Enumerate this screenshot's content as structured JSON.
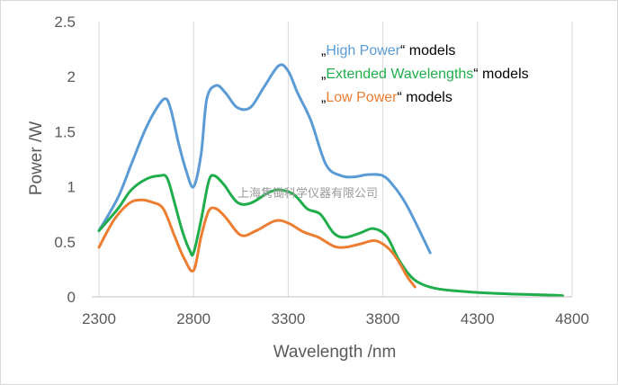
{
  "chart_data": {
    "type": "line",
    "title": "",
    "xlabel": "Wavelength /nm",
    "ylabel": "Power /W",
    "xlim": [
      2300,
      4800
    ],
    "ylim": [
      0,
      2.5
    ],
    "x_ticks": [
      "2300",
      "2800",
      "3300",
      "3800",
      "4300",
      "4800"
    ],
    "y_ticks": [
      "0",
      "0.5",
      "1",
      "1.5",
      "2",
      "2.5"
    ],
    "grid": "vertical",
    "legend_position": "top-right",
    "legend": [
      {
        "prefix": "„",
        "name": "High Power",
        "suffix": "“ models",
        "color": "#5B9BD5"
      },
      {
        "prefix": "„",
        "name": "Extended Wavelengths",
        "suffix": "“ models",
        "color": "#1FAE4B"
      },
      {
        "prefix": "„",
        "name": "Low Power",
        "suffix": "“ models",
        "color": "#ED7D31"
      }
    ],
    "watermark": "上海隽锄科学仪器有限公司",
    "series": [
      {
        "name": "High Power",
        "color": "#5B9BD5",
        "points": [
          [
            2300,
            0.6
          ],
          [
            2400,
            0.9
          ],
          [
            2470,
            1.2
          ],
          [
            2540,
            1.5
          ],
          [
            2600,
            1.7
          ],
          [
            2650,
            1.8
          ],
          [
            2680,
            1.7
          ],
          [
            2720,
            1.4
          ],
          [
            2760,
            1.15
          ],
          [
            2800,
            1.0
          ],
          [
            2840,
            1.3
          ],
          [
            2870,
            1.8
          ],
          [
            2920,
            1.92
          ],
          [
            2970,
            1.85
          ],
          [
            3030,
            1.72
          ],
          [
            3100,
            1.72
          ],
          [
            3170,
            1.9
          ],
          [
            3250,
            2.1
          ],
          [
            3300,
            2.05
          ],
          [
            3350,
            1.85
          ],
          [
            3420,
            1.6
          ],
          [
            3500,
            1.2
          ],
          [
            3580,
            1.1
          ],
          [
            3650,
            1.09
          ],
          [
            3720,
            1.11
          ],
          [
            3800,
            1.1
          ],
          [
            3860,
            1.0
          ],
          [
            3920,
            0.85
          ],
          [
            3980,
            0.65
          ],
          [
            4050,
            0.4
          ]
        ]
      },
      {
        "name": "Extended Wavelengths",
        "color": "#1FAE4B",
        "points": [
          [
            2300,
            0.6
          ],
          [
            2400,
            0.8
          ],
          [
            2470,
            0.97
          ],
          [
            2550,
            1.07
          ],
          [
            2620,
            1.1
          ],
          [
            2660,
            1.08
          ],
          [
            2700,
            0.85
          ],
          [
            2740,
            0.6
          ],
          [
            2780,
            0.42
          ],
          [
            2800,
            0.4
          ],
          [
            2840,
            0.7
          ],
          [
            2880,
            1.05
          ],
          [
            2910,
            1.1
          ],
          [
            2960,
            1.02
          ],
          [
            3030,
            0.86
          ],
          [
            3100,
            0.85
          ],
          [
            3200,
            0.95
          ],
          [
            3260,
            0.97
          ],
          [
            3330,
            0.93
          ],
          [
            3400,
            0.8
          ],
          [
            3470,
            0.75
          ],
          [
            3540,
            0.58
          ],
          [
            3600,
            0.54
          ],
          [
            3680,
            0.58
          ],
          [
            3750,
            0.62
          ],
          [
            3820,
            0.55
          ],
          [
            3880,
            0.35
          ],
          [
            3940,
            0.2
          ],
          [
            4000,
            0.12
          ],
          [
            4100,
            0.07
          ],
          [
            4300,
            0.04
          ],
          [
            4500,
            0.025
          ],
          [
            4700,
            0.015
          ],
          [
            4750,
            0.01
          ]
        ]
      },
      {
        "name": "Low Power",
        "color": "#ED7D31",
        "points": [
          [
            2300,
            0.45
          ],
          [
            2380,
            0.7
          ],
          [
            2460,
            0.85
          ],
          [
            2520,
            0.88
          ],
          [
            2580,
            0.86
          ],
          [
            2640,
            0.8
          ],
          [
            2700,
            0.55
          ],
          [
            2750,
            0.35
          ],
          [
            2800,
            0.24
          ],
          [
            2840,
            0.55
          ],
          [
            2880,
            0.78
          ],
          [
            2920,
            0.8
          ],
          [
            2970,
            0.72
          ],
          [
            3050,
            0.56
          ],
          [
            3130,
            0.6
          ],
          [
            3230,
            0.69
          ],
          [
            3300,
            0.67
          ],
          [
            3380,
            0.59
          ],
          [
            3460,
            0.54
          ],
          [
            3540,
            0.46
          ],
          [
            3600,
            0.45
          ],
          [
            3680,
            0.48
          ],
          [
            3760,
            0.51
          ],
          [
            3830,
            0.44
          ],
          [
            3880,
            0.33
          ],
          [
            3930,
            0.18
          ],
          [
            3970,
            0.09
          ]
        ]
      }
    ]
  }
}
